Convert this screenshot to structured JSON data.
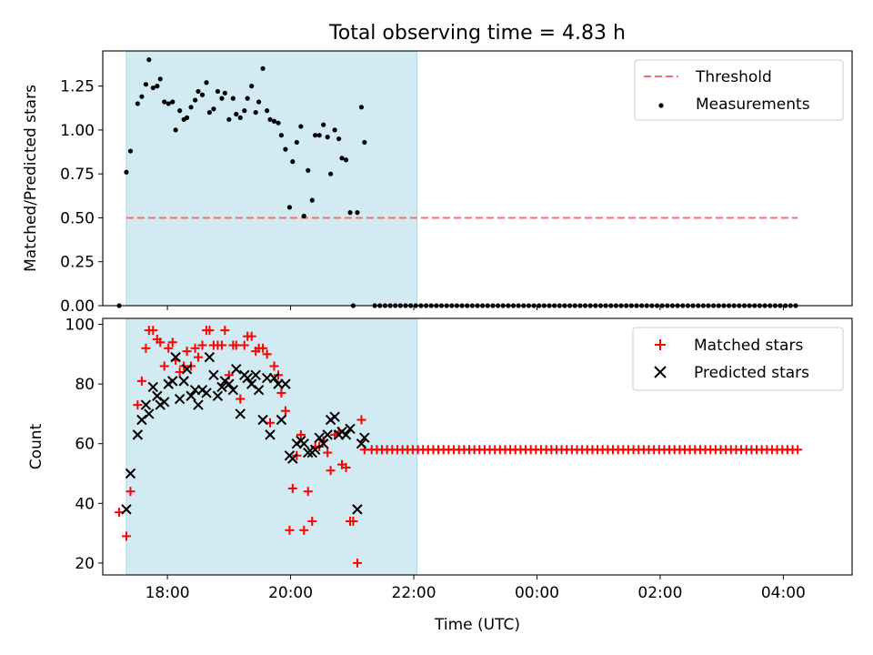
{
  "title": "Total observing time = 4.83 h",
  "xlabel": "Time (UTC)",
  "x_tick_labels": [
    "18:00",
    "20:00",
    "22:00",
    "00:00",
    "02:00",
    "04:00"
  ],
  "colors": {
    "shade": "#add8e6",
    "threshold": "#ff6b6b",
    "measurement": "#000000",
    "matched": "#ff0000",
    "predicted": "#000000"
  },
  "chart_data": [
    {
      "type": "scatter",
      "ylabel": "Matched/Predicted stars",
      "ylim": [
        0,
        1.45
      ],
      "yticks": [
        0.0,
        0.25,
        0.5,
        0.75,
        1.0,
        1.25
      ],
      "ytick_labels": [
        "0.00",
        "0.25",
        "0.50",
        "0.75",
        "1.00",
        "1.25"
      ],
      "x_is_time_utc": true,
      "xlim": [
        "16:57",
        "05:07"
      ],
      "observing_window": [
        "17:20",
        "22:03"
      ],
      "legend": {
        "placement": "upper right",
        "entries": [
          "Threshold",
          "Measurements"
        ]
      },
      "threshold": {
        "name": "Threshold",
        "value": 0.5,
        "x_range": [
          "17:20",
          "04:14"
        ]
      },
      "series": [
        {
          "name": "Measurements",
          "marker": "dot",
          "points": [
            [
              "17:13",
              0.0
            ],
            [
              "17:20",
              0.76
            ],
            [
              "17:24",
              0.88
            ],
            [
              "17:31",
              1.15
            ],
            [
              "17:35",
              1.19
            ],
            [
              "17:39",
              1.26
            ],
            [
              "17:42",
              1.4
            ],
            [
              "17:46",
              1.24
            ],
            [
              "17:50",
              1.25
            ],
            [
              "17:53",
              1.29
            ],
            [
              "17:57",
              1.16
            ],
            [
              "18:01",
              1.15
            ],
            [
              "18:05",
              1.16
            ],
            [
              "18:08",
              1.0
            ],
            [
              "18:12",
              1.11
            ],
            [
              "18:16",
              1.06
            ],
            [
              "18:19",
              1.07
            ],
            [
              "18:23",
              1.13
            ],
            [
              "18:27",
              1.17
            ],
            [
              "18:30",
              1.22
            ],
            [
              "18:34",
              1.2
            ],
            [
              "18:38",
              1.27
            ],
            [
              "18:41",
              1.1
            ],
            [
              "18:45",
              1.12
            ],
            [
              "18:49",
              1.22
            ],
            [
              "18:53",
              1.18
            ],
            [
              "18:56",
              1.21
            ],
            [
              "19:00",
              1.06
            ],
            [
              "19:04",
              1.18
            ],
            [
              "19:07",
              1.09
            ],
            [
              "19:11",
              1.07
            ],
            [
              "19:15",
              1.11
            ],
            [
              "19:18",
              1.18
            ],
            [
              "19:22",
              1.25
            ],
            [
              "19:26",
              1.1
            ],
            [
              "19:29",
              1.16
            ],
            [
              "19:33",
              1.35
            ],
            [
              "19:37",
              1.11
            ],
            [
              "19:40",
              1.06
            ],
            [
              "19:44",
              1.05
            ],
            [
              "19:48",
              1.04
            ],
            [
              "19:51",
              0.97
            ],
            [
              "19:55",
              0.89
            ],
            [
              "19:59",
              0.56
            ],
            [
              "20:02",
              0.82
            ],
            [
              "20:06",
              0.93
            ],
            [
              "20:10",
              1.02
            ],
            [
              "20:13",
              0.51
            ],
            [
              "20:17",
              0.77
            ],
            [
              "20:21",
              0.6
            ],
            [
              "20:24",
              0.97
            ],
            [
              "20:28",
              0.97
            ],
            [
              "20:32",
              1.03
            ],
            [
              "20:36",
              0.96
            ],
            [
              "20:39",
              0.75
            ],
            [
              "20:43",
              1.0
            ],
            [
              "20:47",
              0.95
            ],
            [
              "20:50",
              0.84
            ],
            [
              "20:54",
              0.83
            ],
            [
              "20:58",
              0.53
            ],
            [
              "21:01",
              0.0
            ],
            [
              "21:05",
              0.53
            ],
            [
              "21:09",
              1.13
            ],
            [
              "21:12",
              0.93
            ]
          ],
          "zero_points_range": {
            "value": 0.0,
            "from": "21:22",
            "to": "04:14",
            "step_minutes": 5
          }
        }
      ]
    },
    {
      "type": "scatter",
      "ylabel": "Count",
      "ylim": [
        16,
        102
      ],
      "yticks": [
        20,
        40,
        60,
        80,
        100
      ],
      "ytick_labels": [
        "20",
        "40",
        "60",
        "80",
        "100"
      ],
      "x_is_time_utc": true,
      "xlim": [
        "16:57",
        "05:07"
      ],
      "observing_window": [
        "17:20",
        "22:03"
      ],
      "legend": {
        "placement": "upper right",
        "entries": [
          "Matched stars",
          "Predicted stars"
        ]
      },
      "series": [
        {
          "name": "Matched stars",
          "marker": "plus",
          "points": [
            [
              "17:13",
              37
            ],
            [
              "17:20",
              29
            ],
            [
              "17:24",
              44
            ],
            [
              "17:31",
              73
            ],
            [
              "17:35",
              81
            ],
            [
              "17:39",
              92
            ],
            [
              "17:42",
              98
            ],
            [
              "17:46",
              98
            ],
            [
              "17:50",
              95
            ],
            [
              "17:53",
              94
            ],
            [
              "17:57",
              86
            ],
            [
              "18:01",
              92
            ],
            [
              "18:05",
              94
            ],
            [
              "18:08",
              88
            ],
            [
              "18:12",
              84
            ],
            [
              "18:16",
              86
            ],
            [
              "18:19",
              91
            ],
            [
              "18:23",
              86
            ],
            [
              "18:27",
              92
            ],
            [
              "18:30",
              89
            ],
            [
              "18:34",
              93
            ],
            [
              "18:38",
              98
            ],
            [
              "18:41",
              98
            ],
            [
              "18:45",
              93
            ],
            [
              "18:49",
              93
            ],
            [
              "18:53",
              93
            ],
            [
              "18:56",
              98
            ],
            [
              "19:00",
              83
            ],
            [
              "19:04",
              93
            ],
            [
              "19:07",
              93
            ],
            [
              "19:11",
              75
            ],
            [
              "19:15",
              93
            ],
            [
              "19:18",
              96
            ],
            [
              "19:22",
              96
            ],
            [
              "19:26",
              91
            ],
            [
              "19:29",
              92
            ],
            [
              "19:33",
              92
            ],
            [
              "19:37",
              90
            ],
            [
              "19:40",
              67
            ],
            [
              "19:44",
              86
            ],
            [
              "19:48",
              83
            ],
            [
              "19:51",
              77
            ],
            [
              "19:55",
              71
            ],
            [
              "19:59",
              31
            ],
            [
              "20:02",
              45
            ],
            [
              "20:06",
              56
            ],
            [
              "20:10",
              63
            ],
            [
              "20:13",
              31
            ],
            [
              "20:17",
              44
            ],
            [
              "20:21",
              34
            ],
            [
              "20:24",
              59
            ],
            [
              "20:28",
              59
            ],
            [
              "20:32",
              61
            ],
            [
              "20:36",
              57
            ],
            [
              "20:39",
              51
            ],
            [
              "20:43",
              63
            ],
            [
              "20:47",
              64
            ],
            [
              "20:50",
              53
            ],
            [
              "20:54",
              52
            ],
            [
              "20:58",
              34
            ],
            [
              "21:01",
              34
            ],
            [
              "21:05",
              20
            ],
            [
              "21:09",
              68
            ],
            [
              "21:12",
              58
            ]
          ],
          "constant_points_range": {
            "value": 58,
            "from": "21:19",
            "to": "04:14",
            "step_minutes": 5
          }
        },
        {
          "name": "Predicted stars",
          "marker": "x",
          "points": [
            [
              "17:20",
              38
            ],
            [
              "17:24",
              50
            ],
            [
              "17:31",
              63
            ],
            [
              "17:35",
              68
            ],
            [
              "17:39",
              73
            ],
            [
              "17:42",
              70
            ],
            [
              "17:46",
              79
            ],
            [
              "17:50",
              76
            ],
            [
              "17:53",
              73
            ],
            [
              "17:57",
              74
            ],
            [
              "18:01",
              80
            ],
            [
              "18:05",
              81
            ],
            [
              "18:08",
              89
            ],
            [
              "18:12",
              75
            ],
            [
              "18:16",
              81
            ],
            [
              "18:19",
              85
            ],
            [
              "18:23",
              76
            ],
            [
              "18:27",
              78
            ],
            [
              "18:30",
              73
            ],
            [
              "18:34",
              78
            ],
            [
              "18:38",
              77
            ],
            [
              "18:41",
              89
            ],
            [
              "18:45",
              83
            ],
            [
              "18:49",
              76
            ],
            [
              "18:53",
              79
            ],
            [
              "18:56",
              81
            ],
            [
              "19:00",
              80
            ],
            [
              "19:04",
              78
            ],
            [
              "19:07",
              85
            ],
            [
              "19:11",
              70
            ],
            [
              "19:15",
              83
            ],
            [
              "19:18",
              82
            ],
            [
              "19:22",
              80
            ],
            [
              "19:26",
              83
            ],
            [
              "19:29",
              78
            ],
            [
              "19:33",
              68
            ],
            [
              "19:37",
              82
            ],
            [
              "19:40",
              63
            ],
            [
              "19:44",
              82
            ],
            [
              "19:48",
              80
            ],
            [
              "19:51",
              68
            ],
            [
              "19:55",
              80
            ],
            [
              "19:59",
              56
            ],
            [
              "20:02",
              55
            ],
            [
              "20:06",
              60
            ],
            [
              "20:10",
              61
            ],
            [
              "20:13",
              60
            ],
            [
              "20:17",
              57
            ],
            [
              "20:21",
              57
            ],
            [
              "20:24",
              58
            ],
            [
              "20:28",
              62
            ],
            [
              "20:32",
              60
            ],
            [
              "20:36",
              63
            ],
            [
              "20:39",
              68
            ],
            [
              "20:43",
              69
            ],
            [
              "20:47",
              63
            ],
            [
              "20:50",
              64
            ],
            [
              "20:54",
              63
            ],
            [
              "20:58",
              65
            ],
            [
              "21:05",
              38
            ],
            [
              "21:09",
              60
            ],
            [
              "21:12",
              62
            ]
          ]
        }
      ]
    }
  ]
}
